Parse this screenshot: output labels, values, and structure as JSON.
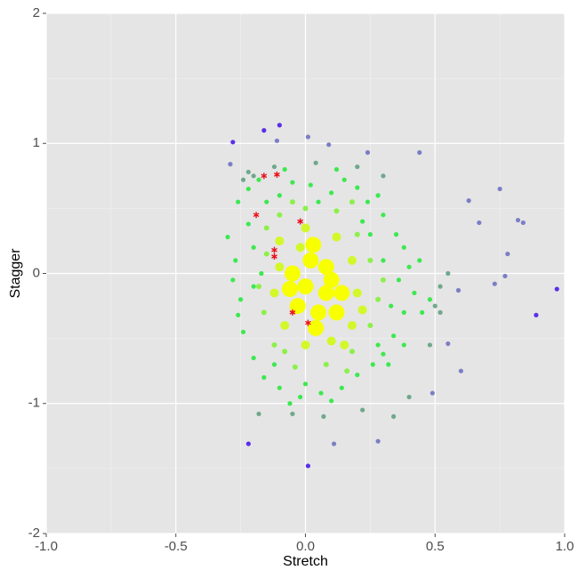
{
  "chart_data": {
    "type": "scatter",
    "x_label": "Stretch",
    "y_label": "Stagger",
    "xlim": [
      -1,
      1
    ],
    "ylim": [
      -2,
      2
    ],
    "xticks": [
      {
        "value": -1,
        "label": "-1.0"
      },
      -0.5,
      {
        "value": 0,
        "label": "0.0"
      },
      0.5,
      {
        "value": 1,
        "label": "1.0"
      }
    ],
    "yticks": [
      -2,
      -1,
      0,
      1,
      2
    ],
    "x_minor": [
      -0.75,
      -0.25,
      0.25,
      0.75
    ],
    "y_minor": [
      -1.5,
      -0.5,
      0.5,
      1.5
    ],
    "grid": true,
    "series": [
      {
        "color": "#5b2ee8",
        "marker": "circle",
        "marker_size": 2.6,
        "x": [
          -0.28,
          -0.16,
          -0.1,
          -0.22,
          0.01,
          0.97,
          0.89
        ],
        "values": [
          1.01,
          1.1,
          1.14,
          -1.31,
          -1.48,
          -0.12,
          -0.32
        ]
      },
      {
        "color": "#7b7fc4",
        "marker": "circle",
        "marker_size": 2.6,
        "x": [
          0.44,
          0.75,
          0.63,
          0.67,
          0.82,
          0.84,
          0.78,
          0.73,
          0.77,
          0.59,
          0.6,
          0.55,
          0.49,
          0.28,
          0.11,
          -0.29,
          0.01,
          0.09,
          0.24,
          -0.11
        ],
        "values": [
          0.93,
          0.65,
          0.56,
          0.39,
          0.41,
          0.39,
          0.15,
          -0.08,
          -0.02,
          -0.13,
          -0.75,
          -0.54,
          -0.92,
          -1.29,
          -1.31,
          0.84,
          1.05,
          0.99,
          0.93,
          1.02
        ]
      },
      {
        "color": "#6fa88c",
        "marker": "circle",
        "marker_size": 2.6,
        "x": [
          -0.22,
          -0.2,
          -0.12,
          0.04,
          0.2,
          0.3,
          0.22,
          0.34,
          0.07,
          -0.05,
          -0.18,
          0.5,
          0.52,
          0.48,
          0.52,
          0.4,
          -0.24,
          0.55
        ],
        "values": [
          0.78,
          0.75,
          0.82,
          0.85,
          0.82,
          0.75,
          -1.05,
          -1.1,
          -1.1,
          -1.08,
          -1.08,
          -0.25,
          -0.1,
          -0.55,
          -0.3,
          -0.95,
          0.72,
          0.0
        ]
      },
      {
        "color": "#3de84f",
        "marker": "circle",
        "marker_size": 2.6,
        "x": [
          -0.3,
          -0.27,
          -0.28,
          -0.25,
          -0.26,
          -0.22,
          -0.18,
          -0.05,
          0.02,
          0.1,
          0.2,
          0.24,
          0.3,
          0.35,
          0.38,
          0.4,
          0.42,
          0.38,
          0.34,
          0.3,
          0.26,
          0.2,
          0.14,
          0.06,
          -0.02,
          -0.1,
          -0.16,
          -0.2,
          -0.24,
          -0.26,
          -0.22,
          -0.2,
          -0.17,
          -0.2,
          -0.15,
          0.15,
          0.28,
          0.33,
          0.36,
          0.28,
          0.1,
          -0.06,
          0.0,
          -0.12,
          0.3,
          0.22,
          -0.1,
          0.05,
          0.45,
          0.48,
          0.44,
          0.32,
          0.38,
          -0.08,
          0.12,
          0.25
        ],
        "values": [
          0.28,
          0.1,
          -0.05,
          -0.2,
          0.55,
          0.65,
          0.72,
          0.7,
          0.68,
          0.62,
          0.66,
          0.55,
          0.45,
          0.3,
          0.2,
          0.05,
          -0.15,
          -0.3,
          -0.48,
          -0.62,
          -0.7,
          -0.78,
          -0.88,
          -0.92,
          -0.95,
          -0.88,
          -0.8,
          -0.65,
          -0.45,
          -0.32,
          0.38,
          0.2,
          0.0,
          -0.1,
          0.55,
          0.72,
          0.6,
          -0.25,
          -0.05,
          -0.55,
          -0.98,
          -1.0,
          -0.85,
          -0.7,
          0.1,
          0.4,
          0.6,
          0.55,
          -0.3,
          -0.2,
          0.1,
          -0.7,
          -0.55,
          0.8,
          0.8,
          0.3
        ]
      },
      {
        "color": "#8cf04a",
        "marker": "circle",
        "marker_size": 3,
        "x": [
          -0.15,
          -0.1,
          0.0,
          0.12,
          0.2,
          0.25,
          0.28,
          0.25,
          0.18,
          0.08,
          -0.04,
          -0.12,
          -0.16,
          -0.18,
          -0.15,
          0.16,
          -0.08,
          0.3,
          0.18,
          -0.05
        ],
        "values": [
          0.35,
          0.45,
          0.5,
          0.48,
          0.3,
          0.1,
          -0.2,
          -0.4,
          -0.6,
          -0.7,
          -0.72,
          -0.55,
          -0.3,
          -0.1,
          0.15,
          -0.75,
          -0.6,
          -0.05,
          0.55,
          0.55
        ]
      },
      {
        "color": "#d2f82a",
        "marker": "circle",
        "marker_size": 5,
        "x": [
          -0.1,
          0.0,
          0.12,
          0.18,
          0.2,
          0.18,
          0.1,
          0.0,
          -0.08,
          -0.12,
          -0.1,
          0.22,
          -0.02,
          0.15
        ],
        "values": [
          0.25,
          0.35,
          0.28,
          0.1,
          -0.15,
          -0.4,
          -0.52,
          -0.55,
          -0.4,
          -0.15,
          0.05,
          -0.28,
          0.2,
          -0.55
        ]
      },
      {
        "color": "#f8ff00",
        "marker": "circle",
        "marker_size": 9,
        "x": [
          0.02,
          0.08,
          0.0,
          0.08,
          0.05,
          -0.03,
          0.12,
          0.1,
          -0.05,
          0.04,
          0.14,
          0.03,
          -0.06
        ],
        "values": [
          0.1,
          0.05,
          -0.1,
          -0.15,
          -0.3,
          -0.25,
          -0.3,
          -0.05,
          0.0,
          -0.42,
          -0.15,
          0.22,
          -0.12
        ]
      },
      {
        "color": "#e8101a",
        "marker": "asterisk",
        "marker_size": 3.5,
        "x": [
          -0.16,
          -0.11,
          -0.19,
          -0.02,
          -0.12,
          -0.12,
          -0.05,
          0.01
        ],
        "values": [
          0.75,
          0.76,
          0.45,
          0.4,
          0.18,
          0.13,
          -0.3,
          -0.38
        ]
      }
    ]
  }
}
